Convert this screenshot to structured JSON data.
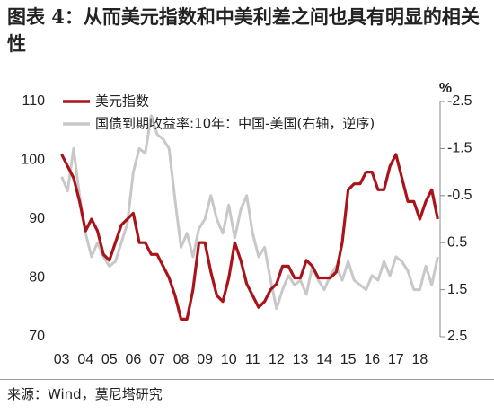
{
  "chart_data": {
    "type": "line",
    "title": "图表 4：从而美元指数和中美利差之间也具有明显的相关性",
    "source": "来源：Wind，莫尼塔研究",
    "y2_unit": "%",
    "x": [
      3.0,
      3.25,
      3.5,
      3.75,
      4.0,
      4.25,
      4.5,
      4.75,
      5.0,
      5.25,
      5.5,
      5.75,
      6.0,
      6.25,
      6.5,
      6.75,
      7.0,
      7.25,
      7.5,
      7.75,
      8.0,
      8.25,
      8.5,
      8.75,
      9.0,
      9.25,
      9.5,
      9.75,
      10.0,
      10.25,
      10.5,
      10.75,
      11.0,
      11.25,
      11.5,
      11.75,
      12.0,
      12.25,
      12.5,
      12.75,
      13.0,
      13.25,
      13.5,
      13.75,
      14.0,
      14.25,
      14.5,
      14.75,
      15.0,
      15.25,
      15.5,
      15.75,
      16.0,
      16.25,
      16.5,
      16.75,
      17.0,
      17.25,
      17.5,
      17.75,
      18.0,
      18.25,
      18.5,
      18.75
    ],
    "xlim": [
      2.75,
      18.85
    ],
    "xticks": [
      {
        "value": 3,
        "label": "03"
      },
      {
        "value": 4,
        "label": "04"
      },
      {
        "value": 5,
        "label": "05"
      },
      {
        "value": 6,
        "label": "06"
      },
      {
        "value": 7,
        "label": "07"
      },
      {
        "value": 8,
        "label": "08"
      },
      {
        "value": 9,
        "label": "09"
      },
      {
        "value": 10,
        "label": "10"
      },
      {
        "value": 11,
        "label": "11"
      },
      {
        "value": 12,
        "label": "12"
      },
      {
        "value": 13,
        "label": "13"
      },
      {
        "value": 14,
        "label": "14"
      },
      {
        "value": 15,
        "label": "15"
      },
      {
        "value": 16,
        "label": "16"
      },
      {
        "value": 17,
        "label": "17"
      },
      {
        "value": 18,
        "label": "18"
      }
    ],
    "ylim": [
      70,
      110
    ],
    "yticks": [
      70,
      80,
      90,
      100,
      110
    ],
    "y2lim": [
      -2.5,
      2.5
    ],
    "y2ticks": [
      -2.5,
      -1.5,
      -0.5,
      0.5,
      1.5,
      2.5
    ],
    "y2_inverted": true,
    "legend": "upper left",
    "series": [
      {
        "name": "美元指数",
        "color": "#a8141a",
        "values": [
          101,
          99,
          97,
          93,
          88,
          90,
          88,
          84,
          83,
          86,
          89,
          90,
          91,
          86,
          86,
          84,
          84,
          82,
          80,
          77,
          73,
          73,
          78,
          86,
          86,
          81,
          77,
          76,
          80,
          86,
          83,
          79,
          77,
          75,
          76,
          78,
          79,
          82,
          82,
          80,
          80,
          83,
          82,
          80,
          80,
          80,
          81,
          86,
          95,
          96,
          96,
          98,
          98,
          95,
          95,
          99,
          101,
          97,
          93,
          93,
          90,
          93,
          95,
          90
        ]
      },
      {
        "name": "国债到期收益率:10年：中国-美国(右轴，逆序)",
        "color": "#c8c8c8",
        "axis": "y2",
        "values": [
          -0.9,
          -0.6,
          -1.5,
          -0.5,
          0.3,
          0.8,
          0.5,
          0.8,
          1.0,
          0.9,
          0.5,
          0.1,
          -1.0,
          -1.5,
          -1.4,
          -2.2,
          -1.8,
          -1.7,
          -1.5,
          -0.4,
          0.6,
          0.3,
          0.8,
          0.2,
          0.0,
          -0.5,
          0.0,
          0.3,
          -0.3,
          0.4,
          -0.2,
          -0.5,
          0.3,
          0.8,
          0.6,
          1.3,
          1.9,
          1.5,
          1.2,
          1.4,
          1.3,
          1.6,
          1.0,
          1.3,
          1.5,
          1.2,
          1.0,
          1.3,
          0.9,
          1.3,
          1.4,
          1.5,
          1.2,
          1.3,
          0.9,
          1.2,
          0.8,
          0.9,
          1.1,
          1.5,
          1.5,
          1.0,
          1.4,
          0.8
        ]
      }
    ]
  }
}
